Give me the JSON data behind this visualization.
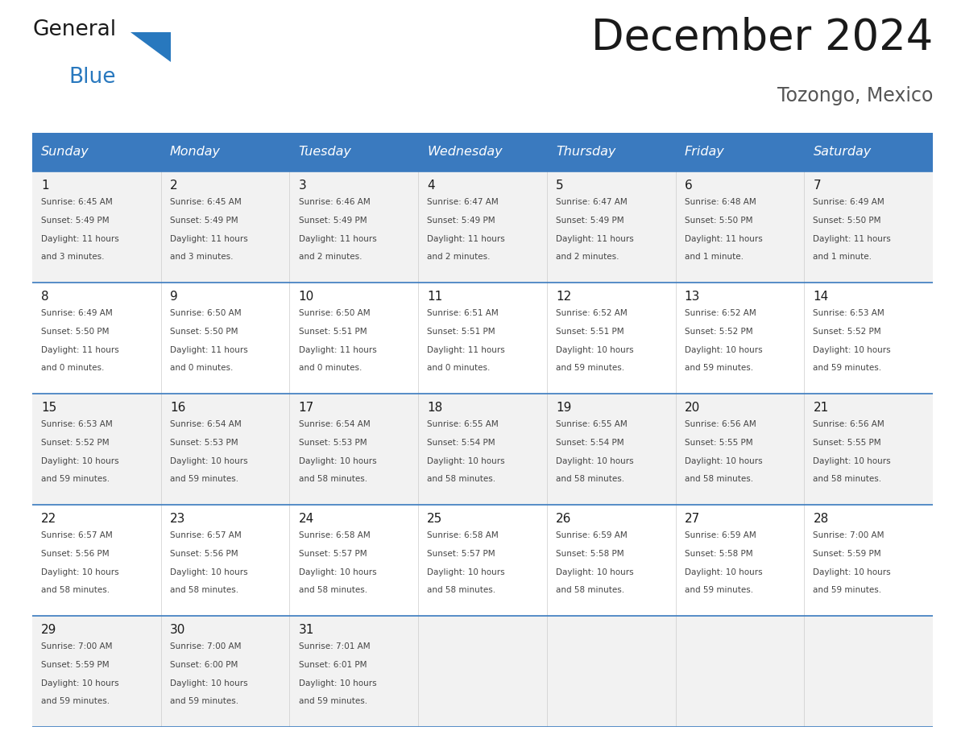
{
  "title": "December 2024",
  "location": "Tozongo, Mexico",
  "header_color": "#3a7abf",
  "header_text_color": "#ffffff",
  "days_of_week": [
    "Sunday",
    "Monday",
    "Tuesday",
    "Wednesday",
    "Thursday",
    "Friday",
    "Saturday"
  ],
  "weeks": [
    [
      {
        "day": 1,
        "sunrise": "6:45 AM",
        "sunset": "5:49 PM",
        "daylight_hours": 11,
        "daylight_minutes": 3
      },
      {
        "day": 2,
        "sunrise": "6:45 AM",
        "sunset": "5:49 PM",
        "daylight_hours": 11,
        "daylight_minutes": 3
      },
      {
        "day": 3,
        "sunrise": "6:46 AM",
        "sunset": "5:49 PM",
        "daylight_hours": 11,
        "daylight_minutes": 2
      },
      {
        "day": 4,
        "sunrise": "6:47 AM",
        "sunset": "5:49 PM",
        "daylight_hours": 11,
        "daylight_minutes": 2
      },
      {
        "day": 5,
        "sunrise": "6:47 AM",
        "sunset": "5:49 PM",
        "daylight_hours": 11,
        "daylight_minutes": 2
      },
      {
        "day": 6,
        "sunrise": "6:48 AM",
        "sunset": "5:50 PM",
        "daylight_hours": 11,
        "daylight_minutes": 1
      },
      {
        "day": 7,
        "sunrise": "6:49 AM",
        "sunset": "5:50 PM",
        "daylight_hours": 11,
        "daylight_minutes": 1
      }
    ],
    [
      {
        "day": 8,
        "sunrise": "6:49 AM",
        "sunset": "5:50 PM",
        "daylight_hours": 11,
        "daylight_minutes": 0
      },
      {
        "day": 9,
        "sunrise": "6:50 AM",
        "sunset": "5:50 PM",
        "daylight_hours": 11,
        "daylight_minutes": 0
      },
      {
        "day": 10,
        "sunrise": "6:50 AM",
        "sunset": "5:51 PM",
        "daylight_hours": 11,
        "daylight_minutes": 0
      },
      {
        "day": 11,
        "sunrise": "6:51 AM",
        "sunset": "5:51 PM",
        "daylight_hours": 11,
        "daylight_minutes": 0
      },
      {
        "day": 12,
        "sunrise": "6:52 AM",
        "sunset": "5:51 PM",
        "daylight_hours": 10,
        "daylight_minutes": 59
      },
      {
        "day": 13,
        "sunrise": "6:52 AM",
        "sunset": "5:52 PM",
        "daylight_hours": 10,
        "daylight_minutes": 59
      },
      {
        "day": 14,
        "sunrise": "6:53 AM",
        "sunset": "5:52 PM",
        "daylight_hours": 10,
        "daylight_minutes": 59
      }
    ],
    [
      {
        "day": 15,
        "sunrise": "6:53 AM",
        "sunset": "5:52 PM",
        "daylight_hours": 10,
        "daylight_minutes": 59
      },
      {
        "day": 16,
        "sunrise": "6:54 AM",
        "sunset": "5:53 PM",
        "daylight_hours": 10,
        "daylight_minutes": 59
      },
      {
        "day": 17,
        "sunrise": "6:54 AM",
        "sunset": "5:53 PM",
        "daylight_hours": 10,
        "daylight_minutes": 58
      },
      {
        "day": 18,
        "sunrise": "6:55 AM",
        "sunset": "5:54 PM",
        "daylight_hours": 10,
        "daylight_minutes": 58
      },
      {
        "day": 19,
        "sunrise": "6:55 AM",
        "sunset": "5:54 PM",
        "daylight_hours": 10,
        "daylight_minutes": 58
      },
      {
        "day": 20,
        "sunrise": "6:56 AM",
        "sunset": "5:55 PM",
        "daylight_hours": 10,
        "daylight_minutes": 58
      },
      {
        "day": 21,
        "sunrise": "6:56 AM",
        "sunset": "5:55 PM",
        "daylight_hours": 10,
        "daylight_minutes": 58
      }
    ],
    [
      {
        "day": 22,
        "sunrise": "6:57 AM",
        "sunset": "5:56 PM",
        "daylight_hours": 10,
        "daylight_minutes": 58
      },
      {
        "day": 23,
        "sunrise": "6:57 AM",
        "sunset": "5:56 PM",
        "daylight_hours": 10,
        "daylight_minutes": 58
      },
      {
        "day": 24,
        "sunrise": "6:58 AM",
        "sunset": "5:57 PM",
        "daylight_hours": 10,
        "daylight_minutes": 58
      },
      {
        "day": 25,
        "sunrise": "6:58 AM",
        "sunset": "5:57 PM",
        "daylight_hours": 10,
        "daylight_minutes": 58
      },
      {
        "day": 26,
        "sunrise": "6:59 AM",
        "sunset": "5:58 PM",
        "daylight_hours": 10,
        "daylight_minutes": 58
      },
      {
        "day": 27,
        "sunrise": "6:59 AM",
        "sunset": "5:58 PM",
        "daylight_hours": 10,
        "daylight_minutes": 59
      },
      {
        "day": 28,
        "sunrise": "7:00 AM",
        "sunset": "5:59 PM",
        "daylight_hours": 10,
        "daylight_minutes": 59
      }
    ],
    [
      {
        "day": 29,
        "sunrise": "7:00 AM",
        "sunset": "5:59 PM",
        "daylight_hours": 10,
        "daylight_minutes": 59
      },
      {
        "day": 30,
        "sunrise": "7:00 AM",
        "sunset": "6:00 PM",
        "daylight_hours": 10,
        "daylight_minutes": 59
      },
      {
        "day": 31,
        "sunrise": "7:01 AM",
        "sunset": "6:01 PM",
        "daylight_hours": 10,
        "daylight_minutes": 59
      },
      null,
      null,
      null,
      null
    ]
  ],
  "background_color": "#ffffff",
  "cell_bg_odd": "#f2f2f2",
  "cell_bg_even": "#ffffff",
  "divider_color": "#3a7abf",
  "logo_general_color": "#1a1a1a",
  "logo_blue_color": "#2878be",
  "logo_triangle_color": "#2878be",
  "title_color": "#1a1a1a",
  "location_color": "#555555",
  "day_num_color": "#1a1a1a",
  "info_text_color": "#444444"
}
